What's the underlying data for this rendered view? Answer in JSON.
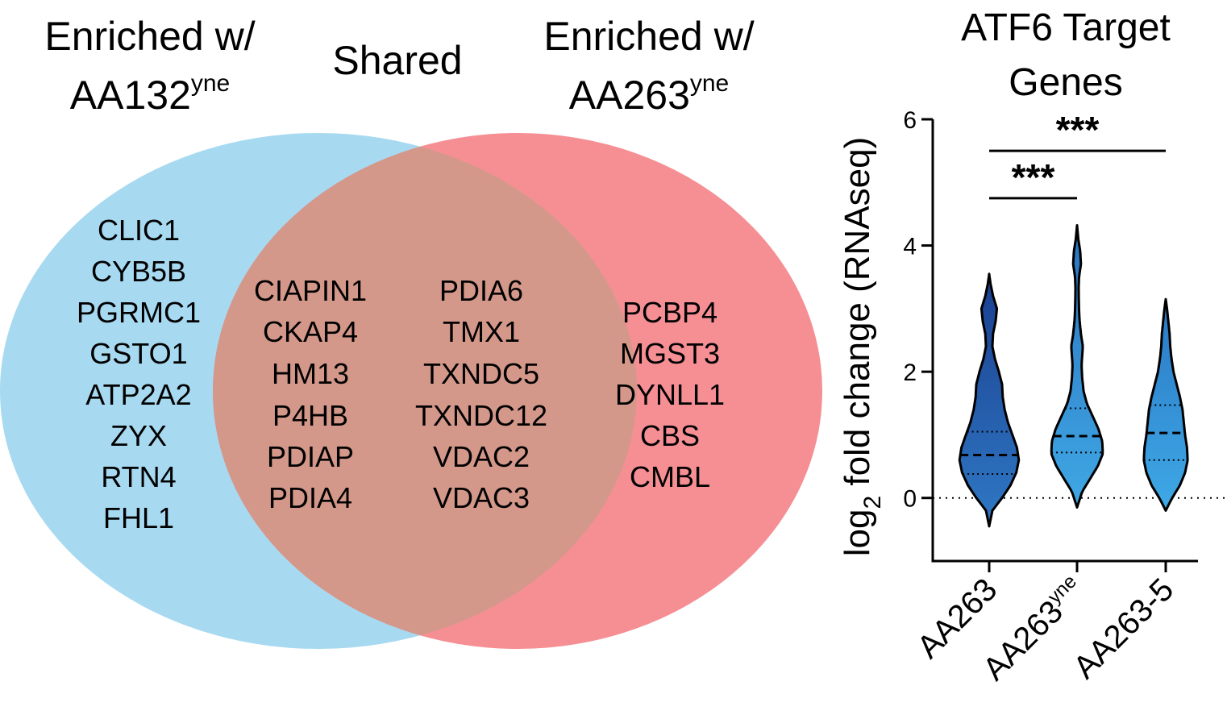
{
  "venn": {
    "left_title": [
      "Enriched w/",
      "AA132",
      "yne"
    ],
    "center_title": "Shared",
    "right_title": [
      "Enriched w/",
      "AA263",
      "yne"
    ],
    "left_color": "#a7d9f1",
    "right_color": "#f58f94",
    "overlap_color": "#d4988a",
    "left_genes": [
      "CLIC1",
      "CYB5B",
      "PGRMC1",
      "GSTO1",
      "ATP2A2",
      "ZYX",
      "RTN4",
      "FHL1"
    ],
    "shared_genes_col1": [
      "CIAPIN1",
      "CKAP4",
      "HM13",
      "P4HB",
      "PDIAP",
      "PDIA4"
    ],
    "shared_genes_col2": [
      "PDIA6",
      "TMX1",
      "TXNDC5",
      "TXNDC12",
      "VDAC2",
      "VDAC3"
    ],
    "right_genes": [
      "PCBP4",
      "MGST3",
      "DYNLL1",
      "CBS",
      "CMBL"
    ]
  },
  "chart_data": {
    "type": "violin",
    "title": [
      "ATF6 Target",
      "Genes"
    ],
    "ylabel": [
      "log",
      "2",
      " fold change (RNAseq)"
    ],
    "ylim": [
      -1,
      6
    ],
    "yticks": [
      0,
      2,
      4,
      6
    ],
    "categories": [
      {
        "label": "AA263",
        "sup": ""
      },
      {
        "label": "AA263",
        "sup": "yne"
      },
      {
        "label": "AA263-5",
        "sup": ""
      }
    ],
    "series": [
      {
        "median": 0.68,
        "q1": 0.38,
        "q3": 1.05,
        "color_top": "#1a3f8f",
        "color_bottom": "#2f78c4",
        "profile": [
          [
            -0.45,
            0.0
          ],
          [
            -0.2,
            0.05
          ],
          [
            0.0,
            0.2
          ],
          [
            0.2,
            0.33
          ],
          [
            0.4,
            0.42
          ],
          [
            0.6,
            0.46
          ],
          [
            0.8,
            0.43
          ],
          [
            1.0,
            0.36
          ],
          [
            1.2,
            0.29
          ],
          [
            1.4,
            0.24
          ],
          [
            1.6,
            0.21
          ],
          [
            1.8,
            0.2
          ],
          [
            2.0,
            0.15
          ],
          [
            2.2,
            0.09
          ],
          [
            2.4,
            0.05
          ],
          [
            2.6,
            0.06
          ],
          [
            2.8,
            0.1
          ],
          [
            3.0,
            0.12
          ],
          [
            3.2,
            0.06
          ],
          [
            3.4,
            0.02
          ],
          [
            3.55,
            0.0
          ]
        ]
      },
      {
        "median": 0.98,
        "q1": 0.72,
        "q3": 1.42,
        "color_top": "#2b74c0",
        "color_bottom": "#3fa7e4",
        "profile": [
          [
            -0.15,
            0.0
          ],
          [
            0.1,
            0.08
          ],
          [
            0.3,
            0.2
          ],
          [
            0.5,
            0.32
          ],
          [
            0.7,
            0.4
          ],
          [
            0.9,
            0.39
          ],
          [
            1.1,
            0.33
          ],
          [
            1.3,
            0.24
          ],
          [
            1.5,
            0.15
          ],
          [
            1.7,
            0.1
          ],
          [
            1.9,
            0.08
          ],
          [
            2.1,
            0.07
          ],
          [
            2.4,
            0.09
          ],
          [
            2.6,
            0.06
          ],
          [
            2.8,
            0.04
          ],
          [
            3.0,
            0.03
          ],
          [
            3.3,
            0.025
          ],
          [
            3.5,
            0.03
          ],
          [
            3.7,
            0.06
          ],
          [
            3.9,
            0.05
          ],
          [
            4.1,
            0.02
          ],
          [
            4.32,
            0.0
          ]
        ]
      },
      {
        "median": 1.03,
        "q1": 0.6,
        "q3": 1.47,
        "color_top": "#2a78c4",
        "color_bottom": "#3fa9e6",
        "profile": [
          [
            -0.2,
            0.0
          ],
          [
            0.0,
            0.1
          ],
          [
            0.2,
            0.22
          ],
          [
            0.4,
            0.3
          ],
          [
            0.6,
            0.34
          ],
          [
            0.8,
            0.33
          ],
          [
            1.0,
            0.3
          ],
          [
            1.2,
            0.28
          ],
          [
            1.4,
            0.26
          ],
          [
            1.6,
            0.22
          ],
          [
            1.8,
            0.17
          ],
          [
            2.0,
            0.12
          ],
          [
            2.2,
            0.09
          ],
          [
            2.4,
            0.07
          ],
          [
            2.6,
            0.06
          ],
          [
            2.8,
            0.04
          ],
          [
            3.0,
            0.02
          ],
          [
            3.15,
            0.0
          ]
        ]
      }
    ],
    "significance": [
      {
        "from": 0,
        "to": 1,
        "y": 4.75,
        "label": "***"
      },
      {
        "from": 0,
        "to": 2,
        "y": 5.5,
        "label": "***"
      }
    ]
  }
}
